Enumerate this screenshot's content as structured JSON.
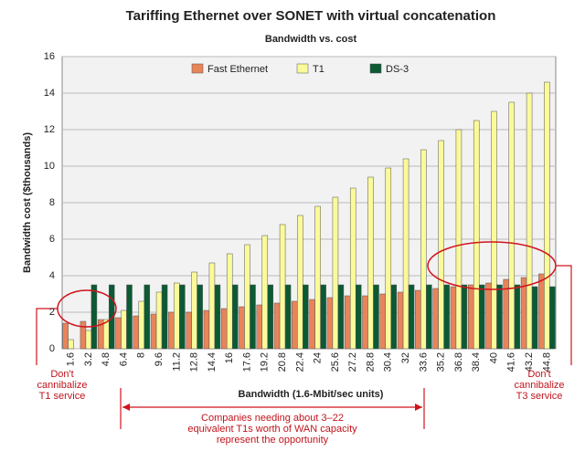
{
  "chart_data": {
    "type": "bar",
    "title": "Tariffing Ethernet over SONET with virtual concatenation",
    "subtitle": "Bandwidth vs. cost",
    "y_label": "Bandwidth cost ($thousands)",
    "x_label": "Bandwidth (1.6-Mbit/sec units)",
    "categories": [
      "1.6",
      "3.2",
      "4.8",
      "6.4",
      "8",
      "9.6",
      "11.2",
      "12.8",
      "14.4",
      "16",
      "17.6",
      "19.2",
      "20.8",
      "22.4",
      "24",
      "25.6",
      "27.2",
      "28.8",
      "30.4",
      "32",
      "33.6",
      "35.2",
      "36.8",
      "38.4",
      "40",
      "41.6",
      "43.2",
      "44.8"
    ],
    "series": [
      {
        "name": "Fast Ethernet",
        "color": "#e8845a",
        "values": [
          1.4,
          1.5,
          1.6,
          1.7,
          1.8,
          1.9,
          2.0,
          2.0,
          2.1,
          2.2,
          2.3,
          2.4,
          2.5,
          2.6,
          2.7,
          2.8,
          2.9,
          2.9,
          3.0,
          3.1,
          3.2,
          3.3,
          3.4,
          3.5,
          3.6,
          3.8,
          3.9,
          4.1
        ]
      },
      {
        "name": "T1",
        "color": "#fafa9a",
        "values": [
          0.5,
          1.0,
          1.6,
          2.1,
          2.6,
          3.1,
          3.6,
          4.2,
          4.7,
          5.2,
          5.7,
          6.2,
          6.8,
          7.3,
          7.8,
          8.3,
          8.8,
          9.4,
          9.9,
          10.4,
          10.9,
          11.4,
          12.0,
          12.5,
          13.0,
          13.5,
          14.0,
          14.6
        ]
      },
      {
        "name": "DS-3",
        "color": "#0b5a34",
        "values": [
          null,
          3.5,
          3.5,
          3.5,
          3.5,
          3.5,
          3.5,
          3.5,
          3.5,
          3.5,
          3.5,
          3.5,
          3.5,
          3.5,
          3.5,
          3.5,
          3.5,
          3.5,
          3.5,
          3.5,
          3.5,
          3.5,
          3.5,
          3.5,
          3.5,
          3.5,
          3.4,
          3.4
        ]
      }
    ],
    "ylim": [
      0,
      16
    ],
    "yticks": [
      0,
      2,
      4,
      6,
      8,
      10,
      12,
      14,
      16
    ],
    "grid": true,
    "legend": "top",
    "annotations": [
      [
        "Don't",
        "cannibalize",
        "T1 service"
      ],
      [
        "Companies needing about 3–22",
        "equivalent T1s worth of WAN capacity",
        "represent the opportunity"
      ],
      [
        "Don't",
        "cannibalize",
        "T3 service"
      ]
    ]
  }
}
